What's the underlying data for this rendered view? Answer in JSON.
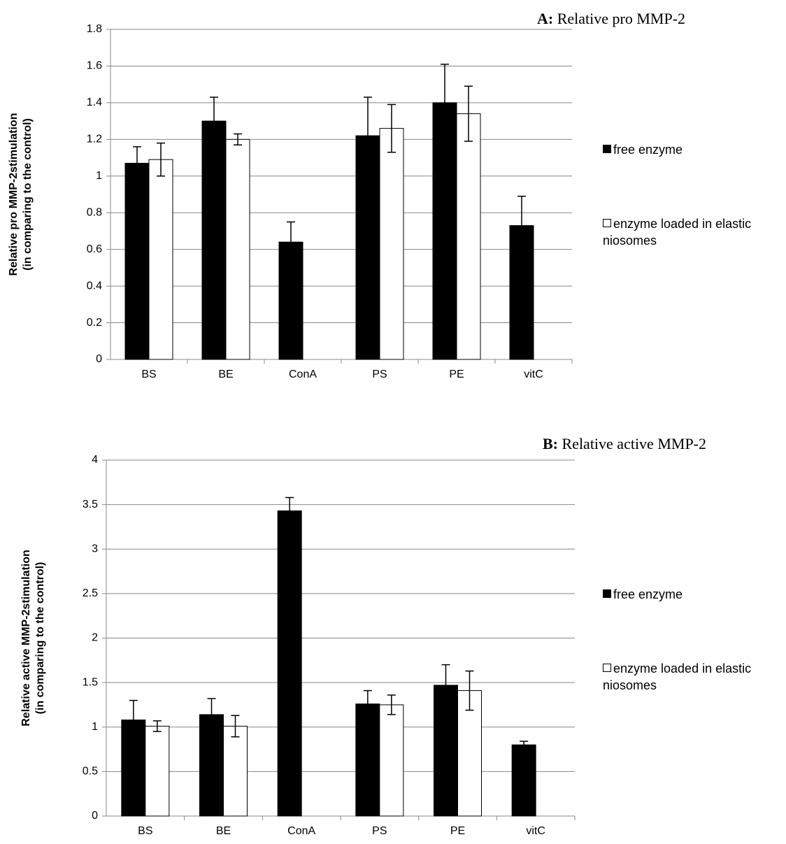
{
  "chart_data": [
    {
      "type": "bar",
      "panel": "A:",
      "title": "Relative pro MMP-2",
      "ylabel": [
        "Relative pro MMP-2stimulation",
        "(in comparing to the control)"
      ],
      "categories": [
        "BS",
        "BE",
        "ConA",
        "PS",
        "PE",
        "vitC"
      ],
      "series": [
        {
          "name": "free enzyme",
          "color": "#000000",
          "values": [
            1.07,
            1.3,
            0.64,
            1.22,
            1.4,
            0.73
          ],
          "errors": [
            0.09,
            0.13,
            0.11,
            0.21,
            0.21,
            0.16
          ]
        },
        {
          "name": "enzyme loaded in elastic niosomes",
          "color": "#ffffff",
          "values": [
            1.09,
            1.2,
            null,
            1.26,
            1.34,
            null
          ],
          "errors": [
            0.09,
            0.03,
            null,
            0.13,
            0.15,
            null
          ]
        }
      ],
      "ylim": [
        0,
        1.8
      ],
      "yticks": [
        0,
        0.2,
        0.4,
        0.6,
        0.8,
        1,
        1.2,
        1.4,
        1.6,
        1.8
      ],
      "grid": true,
      "legend": "right"
    },
    {
      "type": "bar",
      "panel": "B:",
      "title": "Relative active MMP-2",
      "ylabel": [
        "Relative active MMP-2stimulation",
        "(in comparing to the control)"
      ],
      "categories": [
        "BS",
        "BE",
        "ConA",
        "PS",
        "PE",
        "vitC"
      ],
      "series": [
        {
          "name": "free enzyme",
          "color": "#000000",
          "values": [
            1.08,
            1.14,
            3.43,
            1.26,
            1.47,
            0.8
          ],
          "errors": [
            0.22,
            0.18,
            0.15,
            0.15,
            0.23,
            0.04
          ]
        },
        {
          "name": "enzyme loaded in elastic niosomes",
          "color": "#ffffff",
          "values": [
            1.01,
            1.01,
            null,
            1.25,
            1.41,
            null
          ],
          "errors": [
            0.06,
            0.12,
            null,
            0.11,
            0.22,
            null
          ]
        }
      ],
      "ylim": [
        0,
        4
      ],
      "yticks": [
        0,
        0.5,
        1,
        1.5,
        2,
        2.5,
        3,
        3.5,
        4
      ],
      "grid": true,
      "legend": "right"
    }
  ]
}
